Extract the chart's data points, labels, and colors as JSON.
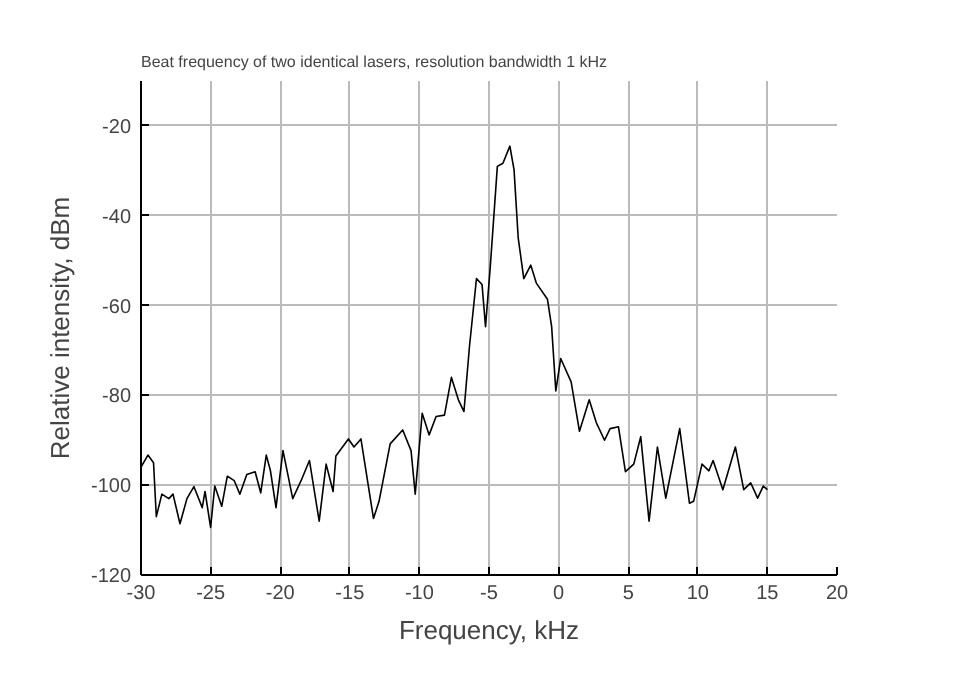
{
  "chart_data": {
    "type": "line",
    "title": "Beat frequency of two identical lasers, resolution bandwidth 1 kHz",
    "xlabel": "Frequency, kHz",
    "ylabel": "Relative intensity, dBm",
    "xlim": [
      -30,
      20
    ],
    "xticks": [
      -30,
      -25,
      -20,
      -15,
      -10,
      -5,
      0,
      5,
      10,
      15,
      20
    ],
    "ylim": [
      -120,
      -10
    ],
    "yticks": [
      -120,
      -100,
      -80,
      -60,
      -40,
      -20
    ],
    "grid": true,
    "series": [
      {
        "color": "#000000",
        "x": [
          -30,
          -29.5,
          -29.1,
          -28.9,
          -28.5,
          -28.0,
          -27.7,
          -27.2,
          -26.7,
          -26.2,
          -25.6,
          -25.4,
          -25,
          -24.7,
          -24.2,
          -23.8,
          -23.3,
          -22.9,
          -22.4,
          -21.8,
          -21.4,
          -21.0,
          -20.7,
          -20.3,
          -19.8,
          -19.1,
          -18.5,
          -17.9,
          -17.2,
          -16.7,
          -16.2,
          -16.0,
          -15.1,
          -14.7,
          -14.2,
          -13.3,
          -12.9,
          -12.1,
          -11.2,
          -10.6,
          -10.3,
          -9.8,
          -9.3,
          -8.8,
          -8.2,
          -7.7,
          -7.2,
          -6.8,
          -6.4,
          -5.9,
          -5.5,
          -5.25,
          -4.9,
          -4.4,
          -4.0,
          -3.5,
          -3.2,
          -2.9,
          -2.5,
          -2.0,
          -1.6,
          -0.8,
          -0.5,
          -0.2,
          0.15,
          0.9,
          1.5,
          2.2,
          2.7,
          3.3,
          3.7,
          4.3,
          4.8,
          5.4,
          5.9,
          6.5,
          7.1,
          7.7,
          8.7,
          9.4,
          9.7,
          10.3,
          10.8,
          11.1,
          11.8,
          12.7,
          13.3,
          13.8,
          14.3,
          14.7,
          15
        ],
        "values": [
          -96,
          -93.3,
          -95,
          -107,
          -102,
          -103,
          -102,
          -108.6,
          -103,
          -100.3,
          -105,
          -101.4,
          -109.4,
          -100.2,
          -104.7,
          -98,
          -99,
          -102,
          -97.6,
          -97,
          -101.7,
          -93.3,
          -96.8,
          -105,
          -92.3,
          -103,
          -99,
          -94.5,
          -108,
          -95.3,
          -101.4,
          -93.5,
          -89.7,
          -91.5,
          -89.7,
          -107.4,
          -103.6,
          -90.8,
          -87.7,
          -92.3,
          -102,
          -84,
          -88.8,
          -84.7,
          -84.4,
          -76,
          -81,
          -83.6,
          -69,
          -54,
          -55.3,
          -64.7,
          -51,
          -29,
          -28.3,
          -24.5,
          -29.8,
          -45,
          -54,
          -51,
          -55,
          -58.6,
          -64.7,
          -79,
          -71.8,
          -77,
          -88,
          -81,
          -86,
          -90,
          -87.4,
          -87,
          -97,
          -95.3,
          -89.2,
          -108,
          -91.5,
          -102.9,
          -87.4,
          -104,
          -103.6,
          -95.3,
          -96.8,
          -94.5,
          -101,
          -91.5,
          -101,
          -99.5,
          -102.9,
          -100.2,
          -101
        ]
      }
    ]
  }
}
